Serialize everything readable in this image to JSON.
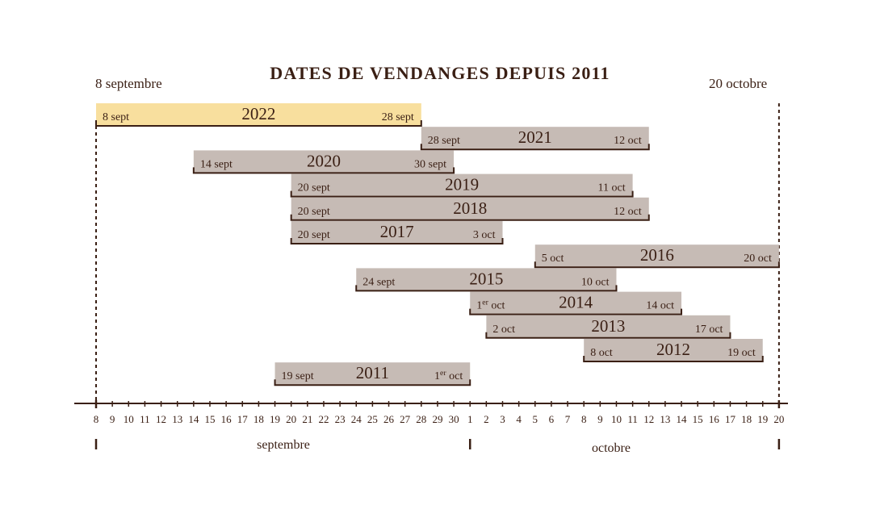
{
  "chart_data": {
    "type": "gantt",
    "title": "DATES DE VENDANGES DEPUIS 2011",
    "range_start_label": "8 septembre",
    "range_end_label": "20 octobre",
    "x_range": [
      "2000-09-08",
      "2000-10-20"
    ],
    "bars": [
      {
        "year": "2022",
        "start": "09-08",
        "end": "09-28",
        "start_label": "8 sept",
        "end_label": "28 sept",
        "highlight": true
      },
      {
        "year": "2021",
        "start": "09-28",
        "end": "10-12",
        "start_label": "28 sept",
        "end_label": "12 oct"
      },
      {
        "year": "2020",
        "start": "09-14",
        "end": "09-30",
        "start_label": "14 sept",
        "end_label": "30 sept"
      },
      {
        "year": "2019",
        "start": "09-20",
        "end": "10-11",
        "start_label": "20 sept",
        "end_label": "11 oct"
      },
      {
        "year": "2018",
        "start": "09-20",
        "end": "10-12",
        "start_label": "20 sept",
        "end_label": "12 oct"
      },
      {
        "year": "2017",
        "start": "09-20",
        "end": "10-03",
        "start_label": "20 sept",
        "end_label": "3 oct"
      },
      {
        "year": "2016",
        "start": "10-05",
        "end": "10-20",
        "start_label": "5 oct",
        "end_label": "20 oct"
      },
      {
        "year": "2015",
        "start": "09-24",
        "end": "10-10",
        "start_label": "24 sept",
        "end_label": "10 oct"
      },
      {
        "year": "2014",
        "start": "10-01",
        "end": "10-14",
        "start_label": "1er oct",
        "end_label": "14 oct"
      },
      {
        "year": "2013",
        "start": "10-02",
        "end": "10-17",
        "start_label": "2 oct",
        "end_label": "17 oct"
      },
      {
        "year": "2012",
        "start": "10-08",
        "end": "10-19",
        "start_label": "8 oct",
        "end_label": "19 oct"
      },
      {
        "year": "2011",
        "start": "09-19",
        "end": "10-01",
        "start_label": "19 sept",
        "end_label": "1er oct"
      }
    ],
    "x_ticks": [
      "8",
      "9",
      "10",
      "11",
      "12",
      "13",
      "14",
      "15",
      "16",
      "17",
      "18",
      "19",
      "20",
      "21",
      "22",
      "23",
      "24",
      "25",
      "26",
      "27",
      "28",
      "29",
      "30",
      "1",
      "2",
      "3",
      "4",
      "5",
      "6",
      "7",
      "8",
      "9",
      "10",
      "11",
      "12",
      "13",
      "14",
      "15",
      "16",
      "17",
      "18",
      "19",
      "20"
    ],
    "month_labels": [
      "septembre",
      "octobre"
    ],
    "colors": {
      "bar": "#c6bbb5",
      "highlight": "#f8df9e",
      "ink": "#3a1f14"
    }
  }
}
